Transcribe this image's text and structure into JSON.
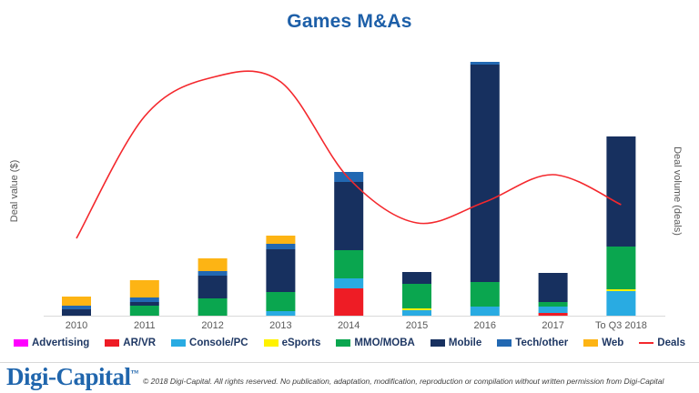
{
  "title": "Games M&As",
  "chart_data": {
    "type": "bar",
    "subtype": "stacked-bar-with-line-overlay",
    "title": "Games M&As",
    "ylabel_left": "Deal value ($)",
    "ylabel_right": "Deal volume (deals)",
    "x_categories": [
      "2010",
      "2011",
      "2012",
      "2013",
      "2014",
      "2015",
      "2016",
      "2017",
      "To Q3 2018"
    ],
    "value_scale": "relative units (axes are unlabeled in the figure; values estimated proportionally, 2016 total = 279)",
    "grid": false,
    "legend_position": "bottom",
    "series": [
      {
        "name": "Advertising",
        "color": "#ff00ff",
        "values": [
          0,
          0,
          0,
          0,
          0,
          0,
          0,
          0,
          0
        ]
      },
      {
        "name": "AR/VR",
        "color": "#ee1c25",
        "values": [
          0,
          0,
          0,
          0,
          30,
          0,
          0,
          3,
          0
        ]
      },
      {
        "name": "Console/PC",
        "color": "#29abe2",
        "values": [
          0,
          0,
          0,
          5,
          11,
          6,
          10,
          7,
          27
        ]
      },
      {
        "name": "eSports",
        "color": "#fff200",
        "values": [
          0,
          0,
          0,
          0,
          0,
          2,
          0,
          0,
          2
        ]
      },
      {
        "name": "MMO/MOBA",
        "color": "#0aa64f",
        "values": [
          0,
          11,
          19,
          21,
          31,
          27,
          27,
          5,
          47
        ]
      },
      {
        "name": "Mobile",
        "color": "#17305f",
        "values": [
          7,
          4,
          25,
          47,
          75,
          13,
          239,
          32,
          121
        ]
      },
      {
        "name": "Tech/other",
        "color": "#2268b2",
        "values": [
          4,
          5,
          5,
          6,
          11,
          0,
          3,
          0,
          0
        ]
      },
      {
        "name": "Web",
        "color": "#fdb414",
        "values": [
          10,
          19,
          14,
          9,
          0,
          0,
          0,
          0,
          0
        ]
      }
    ],
    "line_series": {
      "name": "Deals",
      "color": "#f4282d",
      "values": [
        85,
        219,
        262,
        257,
        151,
        102,
        125,
        155,
        122
      ]
    }
  },
  "footer": {
    "brand": "Digi-Capital",
    "brand_mark": "™",
    "copyright": "© 2018 Digi-Capital. All rights reserved. No publication, adaptation, modification, reproduction or compilation without written permission from Digi-Capital"
  },
  "colors": {
    "title_blue": "#1d5fa8",
    "axis_gray": "#d9d9d9",
    "label_gray": "#595959",
    "legend_text_navy": "#1f3864",
    "brand_blue": "#2066ad"
  }
}
